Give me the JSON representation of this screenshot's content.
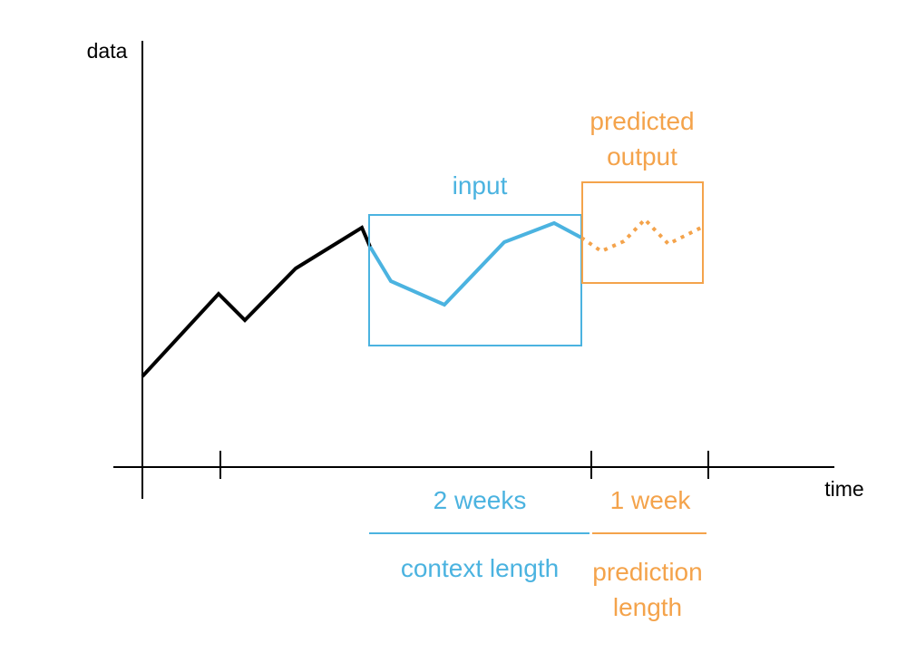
{
  "colors": {
    "history": "#000000",
    "input": "#4bb3e0",
    "prediction": "#f4a34b",
    "axis": "#000000"
  },
  "axes": {
    "y_label": "data",
    "x_label": "time"
  },
  "boxes": {
    "input_label": "input",
    "predicted_label_line1": "predicted",
    "predicted_label_line2": "output"
  },
  "spans": {
    "context_duration": "2 weeks",
    "context_name": "context length",
    "prediction_duration": "1 week",
    "prediction_name_line1": "prediction",
    "prediction_name_line2": "length"
  }
}
